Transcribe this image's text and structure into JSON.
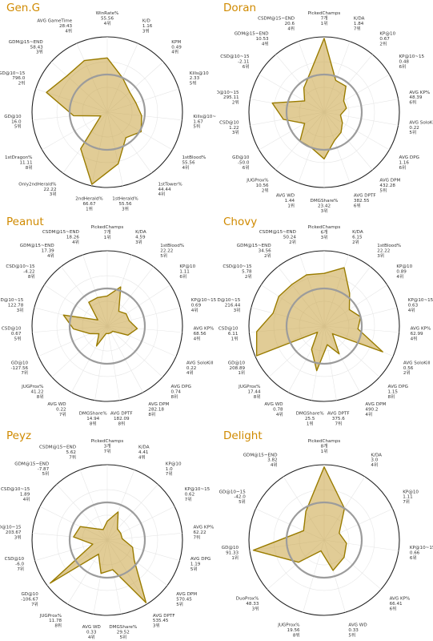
{
  "chart_data": [
    {
      "type": "radar",
      "title": "Gen.G",
      "ring_levels": [
        0.33,
        0.67,
        1.0
      ],
      "highlight_ring": 0.5,
      "axes": [
        {
          "name": "WinRate%",
          "value": "55.56",
          "rank": "4위",
          "r": 0.72
        },
        {
          "name": "K/D",
          "value": "1.16",
          "rank": "3위",
          "r": 0.5
        },
        {
          "name": "KPM",
          "value": "0.49",
          "rank": "4위",
          "r": 0.4
        },
        {
          "name": "Kills@10",
          "value": "2.33",
          "rank": "5위",
          "r": 0.4
        },
        {
          "name": "Kills@10~15",
          "value": "1.67",
          "rank": "5위",
          "r": 0.46
        },
        {
          "name": "1stBlood%",
          "value": "55.56",
          "rank": "4위",
          "r": 0.52
        },
        {
          "name": "1stTower%",
          "value": "44.44",
          "rank": "4위",
          "r": 0.42
        },
        {
          "name": "1stHerald%",
          "value": "55.56",
          "rank": "3위",
          "r": 0.7
        },
        {
          "name": "2ndHerald%",
          "value": "66.67",
          "rank": "1위",
          "r": 0.98
        },
        {
          "name": "Only2ndHerald%",
          "value": "22.22",
          "rank": "3위",
          "r": 0.6
        },
        {
          "name": "1stDragon%",
          "value": "11.11",
          "rank": "8위",
          "r": 0.1
        },
        {
          "name": "GD@10",
          "value": "16.0",
          "rank": "5위",
          "r": 0.45
        },
        {
          "name": "GD@10~15",
          "value": "796.0",
          "rank": "2위",
          "r": 0.85
        },
        {
          "name": "GDM@15~END",
          "value": "58.43",
          "rank": "3위",
          "r": 0.72
        },
        {
          "name": "AVG GameTime",
          "value": "28:43",
          "rank": "4위",
          "r": 0.75
        }
      ]
    },
    {
      "type": "radar",
      "title": "Doran",
      "ring_levels": [
        0.33,
        0.67,
        1.0
      ],
      "highlight_ring": 0.5,
      "axes": [
        {
          "name": "PickedChamps",
          "value": "7개",
          "rank": "1위",
          "r": 0.98
        },
        {
          "name": "K/DA",
          "value": "1.84",
          "rank": "7위",
          "r": 0.45
        },
        {
          "name": "KP@10",
          "value": "0.67",
          "rank": "2위",
          "r": 0.45
        },
        {
          "name": "KP@10~15",
          "value": "0.48",
          "rank": "6위",
          "r": 0.3
        },
        {
          "name": "AVG KP%",
          "value": "48.39",
          "rank": "6위",
          "r": 0.3
        },
        {
          "name": "AVG SoloKill",
          "value": "0.22",
          "rank": "5위",
          "r": 0.22
        },
        {
          "name": "AVG DPG",
          "value": "1.16",
          "rank": "6위",
          "r": 0.28
        },
        {
          "name": "AVG DPM",
          "value": "432.28",
          "rank": "5위",
          "r": 0.35
        },
        {
          "name": "AVG DPTF",
          "value": "382.55",
          "rank": "6위",
          "r": 0.4
        },
        {
          "name": "DMGShare%",
          "value": "23.42",
          "rank": "3위",
          "r": 0.62
        },
        {
          "name": "AVG WD",
          "value": "1.44",
          "rank": "1위",
          "r": 0.5
        },
        {
          "name": "JUGProx%",
          "value": "10.56",
          "rank": "2위",
          "r": 0.5
        },
        {
          "name": "GD@10",
          "value": "-50.0",
          "rank": "6위",
          "r": 0.3
        },
        {
          "name": "CSD@10",
          "value": "1.22",
          "rank": "3위",
          "r": 0.55
        },
        {
          "name": "GD@10~15",
          "value": "295.11",
          "rank": "2위",
          "r": 0.7
        },
        {
          "name": "CSD@10~15",
          "value": "-2.11",
          "rank": "6위",
          "r": 0.3
        },
        {
          "name": "GDM@15~END",
          "value": "10.53",
          "rank": "4위",
          "r": 0.42
        },
        {
          "name": "CSDM@15~END",
          "value": "20.6",
          "rank": "4위",
          "r": 0.55
        }
      ]
    },
    {
      "type": "radar",
      "title": "Peanut",
      "ring_levels": [
        0.33,
        0.67,
        1.0
      ],
      "highlight_ring": 0.5,
      "axes": [
        {
          "name": "PickedChamps",
          "value": "7개",
          "rank": "1위",
          "r": 0.4
        },
        {
          "name": "K/DA",
          "value": "4.59",
          "rank": "3위",
          "r": 0.55
        },
        {
          "name": "1stBlood%",
          "value": "22.22",
          "rank": "5위",
          "r": 0.25
        },
        {
          "name": "KP@10",
          "value": "1.11",
          "rank": "6위",
          "r": 0.3
        },
        {
          "name": "KP@10~15",
          "value": "0.69",
          "rank": "4위",
          "r": 0.3
        },
        {
          "name": "AVG KP%",
          "value": "68.56",
          "rank": "4위",
          "r": 0.4
        },
        {
          "name": "AVG SoloKill",
          "value": "0.22",
          "rank": "4위",
          "r": 0.3
        },
        {
          "name": "AVG DPG",
          "value": "0.74",
          "rank": "8위",
          "r": 0.1
        },
        {
          "name": "AVG DPM",
          "value": "282.18",
          "rank": "8위",
          "r": 0.1
        },
        {
          "name": "AVG DPTF",
          "value": "182.09",
          "rank": "8위",
          "r": 0.1
        },
        {
          "name": "DMGShare%",
          "value": "14.94",
          "rank": "8위",
          "r": 0.1
        },
        {
          "name": "AVG WD",
          "value": "0.22",
          "rank": "7위",
          "r": 0.3
        },
        {
          "name": "JUGProx%",
          "value": "41.22",
          "rank": "8위",
          "r": 0.15
        },
        {
          "name": "GD@10",
          "value": "-127.56",
          "rank": "7위",
          "r": 0.25
        },
        {
          "name": "CSD@10",
          "value": "0.67",
          "rank": "5위",
          "r": 0.45
        },
        {
          "name": "GD@10~15",
          "value": "122.78",
          "rank": "3위",
          "r": 0.6
        },
        {
          "name": "CSD@10~15",
          "value": "-4.22",
          "rank": "8위",
          "r": 0.15
        },
        {
          "name": "GDM@15~END",
          "value": "17.39",
          "rank": "4위",
          "r": 0.4
        },
        {
          "name": "CSDM@15~END",
          "value": "18.26",
          "rank": "4위",
          "r": 0.4
        }
      ]
    },
    {
      "type": "radar",
      "title": "Chovy",
      "ring_levels": [
        0.33,
        0.67,
        1.0
      ],
      "highlight_ring": 0.5,
      "axes": [
        {
          "name": "PickedChamps",
          "value": "6개",
          "rank": "3위",
          "r": 0.7
        },
        {
          "name": "K/DA",
          "value": "6.15",
          "rank": "2위",
          "r": 0.82
        },
        {
          "name": "1stBlood%",
          "value": "22.22",
          "rank": "3위",
          "r": 0.55
        },
        {
          "name": "KP@10",
          "value": "0.89",
          "rank": "4위",
          "r": 0.4
        },
        {
          "name": "KP@10~15",
          "value": "0.63",
          "rank": "4위",
          "r": 0.5
        },
        {
          "name": "AVG KP%",
          "value": "62.99",
          "rank": "4위",
          "r": 0.45
        },
        {
          "name": "AVG SoloKill",
          "value": "0.56",
          "rank": "2위",
          "r": 0.85
        },
        {
          "name": "AVG DPG",
          "value": "1.15",
          "rank": "8위",
          "r": 0.15
        },
        {
          "name": "AVG DPM",
          "value": "490.2",
          "rank": "4위",
          "r": 0.42
        },
        {
          "name": "AVG DPTF",
          "value": "375.6",
          "rank": "7위",
          "r": 0.25
        },
        {
          "name": "DMGShare%",
          "value": "25.5",
          "rank": "1위",
          "r": 0.6
        },
        {
          "name": "AVG WD",
          "value": "0.78",
          "rank": "4위",
          "r": 0.35
        },
        {
          "name": "JUGProx%",
          "value": "17.44",
          "rank": "8위",
          "r": 0.12
        },
        {
          "name": "GD@10",
          "value": "208.89",
          "rank": "1위",
          "r": 0.98
        },
        {
          "name": "CSD@10",
          "value": "6.11",
          "rank": "1위",
          "r": 0.9
        },
        {
          "name": "GD@10~15",
          "value": "216.44",
          "rank": "3위",
          "r": 0.7
        },
        {
          "name": "CSD@10~15",
          "value": "5.78",
          "rank": "2위",
          "r": 0.72
        },
        {
          "name": "GDM@15~END",
          "value": "34.56",
          "rank": "2위",
          "r": 0.7
        },
        {
          "name": "CSDM@15~END",
          "value": "50.24",
          "rank": "2위",
          "r": 0.72
        }
      ]
    },
    {
      "type": "radar",
      "title": "Peyz",
      "ring_levels": [
        0.33,
        0.67,
        1.0
      ],
      "highlight_ring": 0.5,
      "axes": [
        {
          "name": "PickedChamps",
          "value": "3개",
          "rank": "7위",
          "r": 0.25
        },
        {
          "name": "K/DA",
          "value": "4.41",
          "rank": "4위",
          "r": 0.4
        },
        {
          "name": "KP@10",
          "value": "1.0",
          "rank": "7위",
          "r": 0.2
        },
        {
          "name": "KP@10~15",
          "value": "0.62",
          "rank": "7위",
          "r": 0.2
        },
        {
          "name": "AVG KP%",
          "value": "62.22",
          "rank": "7위",
          "r": 0.2
        },
        {
          "name": "AVG DPG",
          "value": "1.19",
          "rank": "5위",
          "r": 0.35
        },
        {
          "name": "AVG DPM",
          "value": "570.45",
          "rank": "5위",
          "r": 0.45
        },
        {
          "name": "AVG DPTF",
          "value": "535.45",
          "rank": "3위",
          "r": 0.98
        },
        {
          "name": "DMGShare%",
          "value": "29.52",
          "rank": "5위",
          "r": 0.4
        },
        {
          "name": "AVG WD",
          "value": "0.33",
          "rank": "4위",
          "r": 0.45
        },
        {
          "name": "JUGProx%",
          "value": "11.78",
          "rank": "8위",
          "r": 0.22
        },
        {
          "name": "GD@10",
          "value": "-106.67",
          "rank": "7위",
          "r": 0.95
        },
        {
          "name": "CSD@10",
          "value": "-6.0",
          "rank": "7위",
          "r": 0.2
        },
        {
          "name": "GD@10~15",
          "value": "203.67",
          "rank": "3위",
          "r": 0.45
        },
        {
          "name": "CSD@10~15",
          "value": "1.89",
          "rank": "4위",
          "r": 0.4
        },
        {
          "name": "GDM@15~END",
          "value": "-7.87",
          "rank": "5위",
          "r": 0.2
        },
        {
          "name": "CSDM@15~END",
          "value": "5.62",
          "rank": "7위",
          "r": 0.15
        }
      ]
    },
    {
      "type": "radar",
      "title": "Delight",
      "ring_levels": [
        0.33,
        0.67,
        1.0
      ],
      "highlight_ring": 0.5,
      "axes": [
        {
          "name": "PickedChamps",
          "value": "8개",
          "rank": "1위",
          "r": 0.97
        },
        {
          "name": "K/DA",
          "value": "3.0",
          "rank": "4위",
          "r": 0.5
        },
        {
          "name": "KP@10",
          "value": "1.11",
          "rank": "7위",
          "r": 0.22
        },
        {
          "name": "KP@10~15",
          "value": "0.66",
          "rank": "6위",
          "r": 0.3
        },
        {
          "name": "AVG KP%",
          "value": "66.41",
          "rank": "6위",
          "r": 0.35
        },
        {
          "name": "AVG WD",
          "value": "0.33",
          "rank": "5위",
          "r": 0.42
        },
        {
          "name": "JUGProx%",
          "value": "19.56",
          "rank": "8위",
          "r": 0.15
        },
        {
          "name": "DuoProx%",
          "value": "48.33",
          "rank": "3위",
          "r": 0.45
        },
        {
          "name": "GD@10",
          "value": "91.33",
          "rank": "1위",
          "r": 0.95
        },
        {
          "name": "GD@10~15",
          "value": "-42.0",
          "rank": "5위",
          "r": 0.3
        },
        {
          "name": "GDM@15~END",
          "value": "3.82",
          "rank": "4위",
          "r": 0.45
        }
      ]
    }
  ]
}
